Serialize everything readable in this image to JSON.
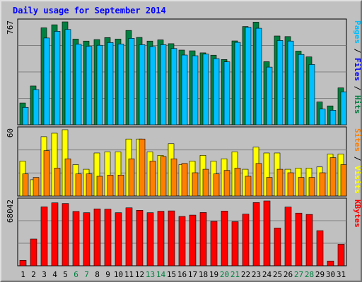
{
  "chart_data": {
    "type": "bar",
    "title": "Daily usage for September 2014",
    "days": [
      "1",
      "2",
      "3",
      "4",
      "5",
      "6",
      "7",
      "8",
      "9",
      "10",
      "11",
      "12",
      "13",
      "14",
      "15",
      "16",
      "17",
      "18",
      "19",
      "20",
      "21",
      "22",
      "23",
      "24",
      "25",
      "26",
      "27",
      "28",
      "29",
      "30",
      "31"
    ],
    "weekend_days": [
      "6",
      "7",
      "13",
      "14",
      "20",
      "21",
      "27",
      "28"
    ],
    "panels": [
      {
        "name": "hits",
        "max_label": "767",
        "ylabel": [
          "Pages",
          "Files",
          "Hits"
        ],
        "series": [
          {
            "name": "Hits",
            "color": "#008040",
            "values": [
              150,
              267,
              667,
              688,
              708,
              590,
              576,
              586,
              600,
              590,
              649,
              601,
              576,
              584,
              558,
              514,
              509,
              495,
              479,
              449,
              577,
              676,
              706,
              434,
              611,
              607,
              507,
              467,
              157,
              130,
              254
            ]
          },
          {
            "name": "Files",
            "color": "#00c0ff",
            "values": [
              120,
              242,
              597,
              643,
              656,
              554,
              540,
              547,
              566,
              556,
              595,
              551,
              538,
              551,
              525,
              480,
              475,
              486,
              455,
              433,
              567,
              671,
              664,
              397,
              580,
              576,
              484,
              415,
              108,
              100,
              227
            ]
          },
          {
            "name": "Pages",
            "color": "#0000ff",
            "values": [
              0,
              0,
              0,
              0,
              0,
              0,
              0,
              0,
              0,
              0,
              0,
              0,
              0,
              0,
              0,
              0,
              0,
              0,
              0,
              0,
              0,
              0,
              0,
              0,
              0,
              0,
              0,
              0,
              0,
              0,
              0
            ]
          }
        ]
      },
      {
        "name": "visits",
        "max_label": "60",
        "ylabel": [
          "Sites",
          "Visits"
        ],
        "series": [
          {
            "name": "Visits",
            "color": "#ffff00",
            "values": [
              30,
              14,
              51,
              54,
              57,
              27,
              23,
              37,
              38,
              38,
              49,
              49,
              38,
              35,
              45,
              27,
              30,
              35,
              30,
              32,
              38,
              23,
              42,
              37,
              37,
              23,
              24,
              24,
              25,
              36,
              36
            ]
          },
          {
            "name": "Sites",
            "color": "#ff8000",
            "values": [
              19,
              16,
              39,
              24,
              32,
              19,
              19,
              17,
              18,
              18,
              32,
              49,
              30,
              34,
              32,
              28,
              20,
              23,
              19,
              22,
              24,
              17,
              28,
              16,
              23,
              20,
              16,
              16,
              20,
              33,
              27
            ]
          }
        ]
      },
      {
        "name": "kbytes",
        "max_label": "68042",
        "ylabel": [
          "KBytes"
        ],
        "series": [
          {
            "name": "KBytes",
            "color": "#ff0000",
            "values": [
              5700,
              28000,
              61600,
              65800,
              65100,
              56800,
              55500,
              59500,
              59200,
              55500,
              60600,
              58000,
              55500,
              57000,
              57400,
              51600,
              53000,
              55700,
              46400,
              57200,
              46100,
              54000,
              66100,
              67800,
              39500,
              61400,
              55100,
              53700,
              36700,
              5000,
              22500
            ]
          }
        ]
      }
    ]
  }
}
